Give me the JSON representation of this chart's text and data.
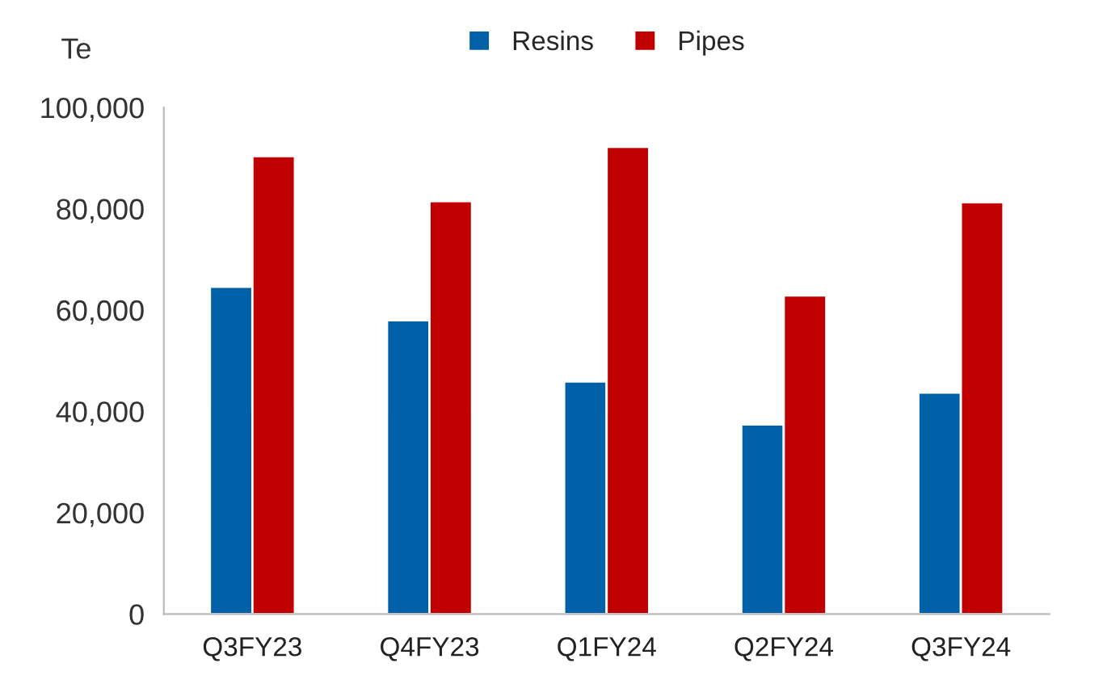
{
  "chart_data": {
    "type": "bar",
    "ylabel": "Te",
    "categories": [
      "Q3FY23",
      "Q4FY23",
      "Q1FY24",
      "Q2FY24",
      "Q3FY24"
    ],
    "series": [
      {
        "name": "Resins",
        "color": "#0060a8",
        "values": [
          64600,
          58000,
          45900,
          37400,
          43700
        ]
      },
      {
        "name": "Pipes",
        "color": "#c00000",
        "values": [
          90400,
          81500,
          92200,
          62900,
          81300
        ]
      }
    ],
    "ylim": [
      0,
      100000
    ],
    "yticks": [
      {
        "value": 0,
        "label": "0"
      },
      {
        "value": 20000,
        "label": "20,000"
      },
      {
        "value": 40000,
        "label": "40,000"
      },
      {
        "value": 60000,
        "label": "60,000"
      },
      {
        "value": 80000,
        "label": "80,000"
      },
      {
        "value": 100000,
        "label": "100,000"
      }
    ],
    "grid": false,
    "legend": "top"
  }
}
